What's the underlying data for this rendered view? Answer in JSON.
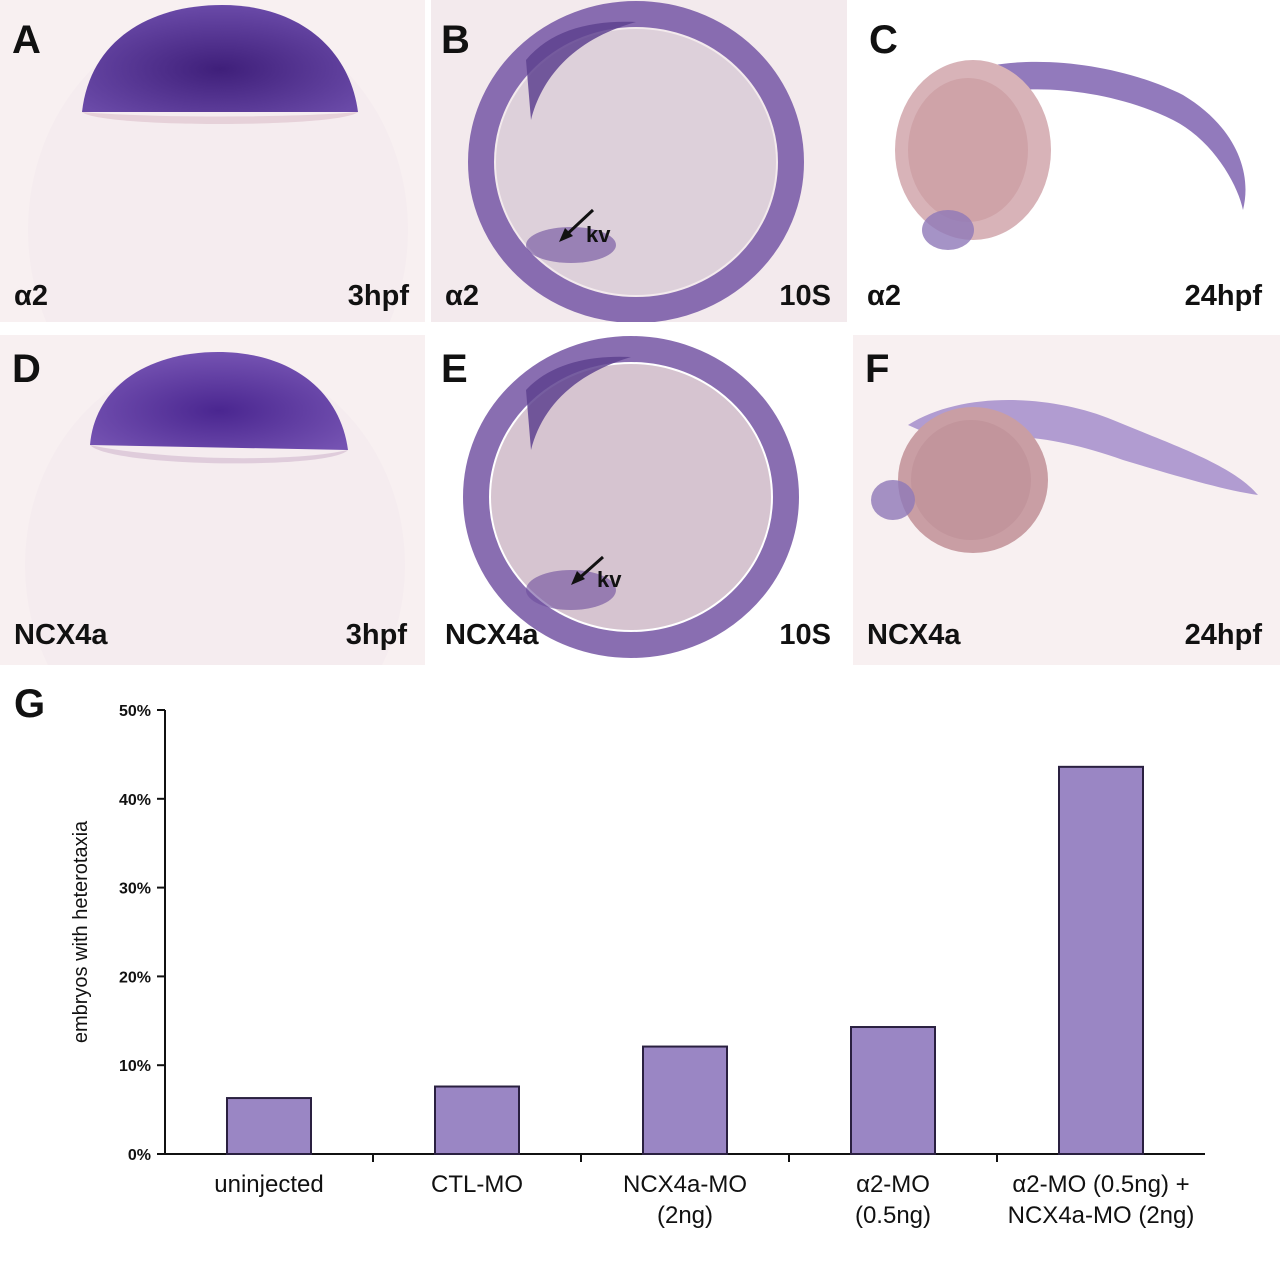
{
  "panels": [
    {
      "letter": "A",
      "gene": "α2",
      "stage": "3hpf"
    },
    {
      "letter": "B",
      "gene": "α2",
      "stage": "10S",
      "marker": "kv"
    },
    {
      "letter": "C",
      "gene": "α2",
      "stage": "24hpf"
    },
    {
      "letter": "D",
      "gene": "NCX4a",
      "stage": "3hpf"
    },
    {
      "letter": "E",
      "gene": "NCX4a",
      "stage": "10S",
      "marker": "kv"
    },
    {
      "letter": "F",
      "gene": "NCX4a",
      "stage": "24hpf"
    }
  ],
  "colors": {
    "stain": "#5a3596",
    "yolk": "#f1e3e6",
    "bar_fill": "#9a86c4",
    "bar_stroke": "#2a2040"
  },
  "chart_label": "G",
  "chart_data": {
    "type": "bar",
    "categories": [
      [
        "uninjected"
      ],
      [
        "CTL-MO"
      ],
      [
        "NCX4a-MO",
        "(2ng)"
      ],
      [
        "α2-MO",
        "(0.5ng)"
      ],
      [
        "α2-MO (0.5ng) +",
        "NCX4a-MO (2ng)"
      ]
    ],
    "values": [
      6.3,
      7.6,
      12.1,
      14.3,
      43.6
    ],
    "ylabel": "embryos with heterotaxia",
    "ylim": [
      0,
      50
    ],
    "yticks": [
      "0%",
      "10%",
      "20%",
      "30%",
      "40%",
      "50%"
    ],
    "grid": false
  }
}
